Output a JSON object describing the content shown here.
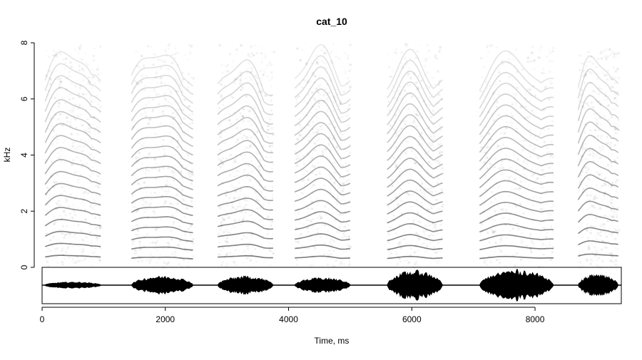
{
  "chart_data": {
    "type": "spectrogram",
    "title": "cat_10",
    "xlabel": "Time, ms",
    "ylabel": "kHz",
    "xlim": [
      0,
      9400
    ],
    "ylim": [
      0,
      8
    ],
    "x_ticks": [
      0,
      2000,
      4000,
      6000,
      8000
    ],
    "x_tick_labels": [
      "0",
      "2000",
      "4000",
      "6000",
      "8000"
    ],
    "y_ticks": [
      0,
      2,
      4,
      6,
      8
    ],
    "y_tick_labels": [
      "0",
      "2",
      "4",
      "6",
      "8"
    ],
    "colormap": "grayscale",
    "grid": false,
    "oscillogram_shown": true,
    "segments": [
      {
        "start_ms": 50,
        "end_ms": 950,
        "f0_khz": 0.42,
        "amplitude": 0.17
      },
      {
        "start_ms": 1450,
        "end_ms": 2450,
        "f0_khz": 0.36,
        "amplitude": 0.55
      },
      {
        "start_ms": 2850,
        "end_ms": 3750,
        "f0_khz": 0.4,
        "amplitude": 0.55
      },
      {
        "start_ms": 4100,
        "end_ms": 5000,
        "f0_khz": 0.38,
        "amplitude": 0.45
      },
      {
        "start_ms": 5600,
        "end_ms": 6500,
        "f0_khz": 0.37,
        "amplitude": 0.9
      },
      {
        "start_ms": 7100,
        "end_ms": 8300,
        "f0_khz": 0.37,
        "amplitude": 0.95
      },
      {
        "start_ms": 8700,
        "end_ms": 9350,
        "f0_khz": 0.46,
        "amplitude": 0.7
      }
    ]
  }
}
